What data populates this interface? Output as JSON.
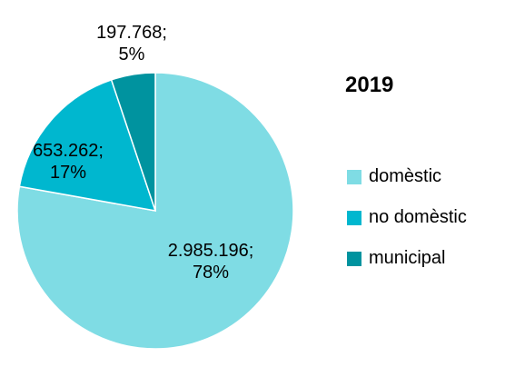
{
  "chart_data": {
    "type": "pie",
    "title": "2019",
    "categories": [
      "domèstic",
      "no domèstic",
      "municipal"
    ],
    "values": [
      2985196,
      653262,
      197768
    ],
    "percentages": [
      78,
      17,
      5
    ],
    "value_labels": [
      "2.985.196;",
      "653.262;",
      "197.768;"
    ],
    "percent_labels": [
      "78%",
      "17%",
      "5%"
    ],
    "colors": [
      "#7FDCE4",
      "#00B7CF",
      "#00939F"
    ],
    "legend_position": "right"
  }
}
